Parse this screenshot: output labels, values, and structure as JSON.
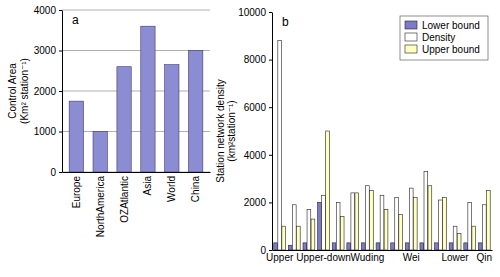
{
  "chart_data": [
    {
      "type": "bar",
      "title": "a",
      "ylabel": [
        "Control Area",
        "(Km² station⁻¹)"
      ],
      "categories": [
        "Europe",
        "NorthAmerica",
        "OZAtlantic",
        "Asia",
        "World",
        "China"
      ],
      "values": [
        1750,
        1000,
        2600,
        3600,
        2650,
        3000
      ],
      "color": "#8c8cd2",
      "ylim": [
        0,
        4000
      ],
      "yticks": [
        0,
        1000,
        2000,
        3000,
        4000
      ],
      "grid": true
    },
    {
      "type": "bar",
      "title": "b",
      "ylabel": [
        "Station network density",
        "(km²station⁻¹)"
      ],
      "categories": [
        "Upper",
        null,
        null,
        "Upper-down",
        null,
        null,
        "Wuding",
        null,
        null,
        "Wei",
        null,
        null,
        "Lower",
        null,
        "Qin"
      ],
      "series": [
        {
          "name": "Lower bound",
          "color": "#7b7bc8",
          "values": [
            300,
            200,
            300,
            2000,
            300,
            300,
            300,
            300,
            300,
            300,
            300,
            300,
            300,
            300,
            300
          ]
        },
        {
          "name": "Density",
          "color": "#ffffff",
          "values": [
            8800,
            1900,
            1700,
            2300,
            2000,
            2400,
            2700,
            2300,
            2200,
            2600,
            3300,
            2100,
            1000,
            2000,
            1900
          ]
        },
        {
          "name": "Upper bound",
          "color": "#ffffc0",
          "values": [
            1000,
            1000,
            1300,
            5000,
            1400,
            2400,
            2500,
            1700,
            1500,
            2200,
            2700,
            2200,
            700,
            1000,
            2500
          ]
        }
      ],
      "ylim": [
        0,
        10000
      ],
      "yticks": [
        0,
        2000,
        4000,
        6000,
        8000,
        10000
      ],
      "legend": "upper right"
    }
  ]
}
